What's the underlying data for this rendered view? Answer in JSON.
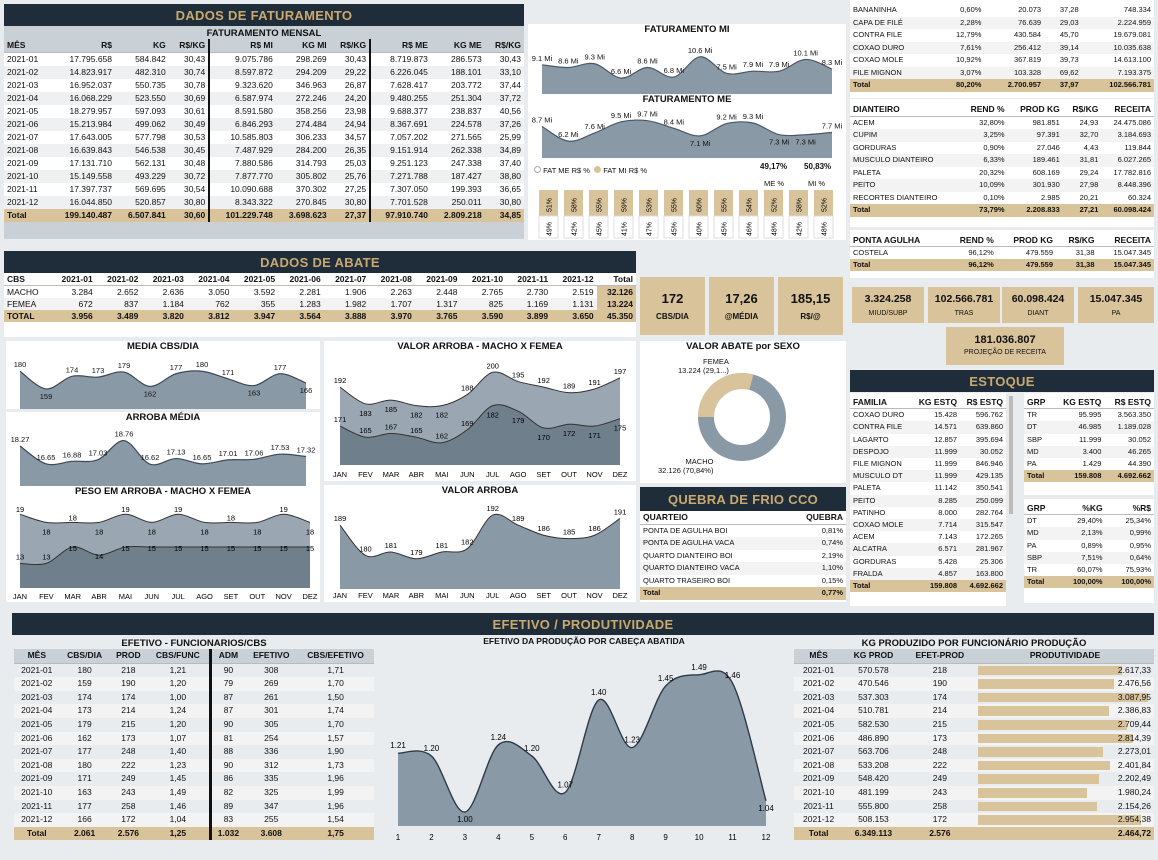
{
  "colors": {
    "navy": "#1f2d3a",
    "gold": "#c9a96e",
    "tan": "#d9c39a",
    "area": "#8a99a6",
    "areaDark": "#5f6f7d",
    "chartbg": "#c9d0d6"
  },
  "fat": {
    "band": "DADOS DE FATURAMENTO",
    "title": "FATURAMENTO MENSAL",
    "headers": [
      "MÊS",
      "R$",
      "KG",
      "R$/KG",
      "R$ MI",
      "KG MI",
      "R$/KG",
      "R$ ME",
      "KG ME",
      "R$/KG"
    ],
    "rows": [
      [
        "2021-01",
        "17.795.658",
        "584.842",
        "30,43",
        "9.075.786",
        "298.269",
        "30,43",
        "8.719.873",
        "286.573",
        "30,43"
      ],
      [
        "2021-02",
        "14.823.917",
        "482.310",
        "30,74",
        "8.597.872",
        "294.209",
        "29,22",
        "6.226.045",
        "188.101",
        "33,10"
      ],
      [
        "2021-03",
        "16.952.037",
        "550.735",
        "30,78",
        "9.323.620",
        "346.963",
        "26,87",
        "7.628.417",
        "203.772",
        "37,44"
      ],
      [
        "2021-04",
        "16.068.229",
        "523.550",
        "30,69",
        "6.587.974",
        "272.246",
        "24,20",
        "9.480.255",
        "251.304",
        "37,72"
      ],
      [
        "2021-05",
        "18.279.957",
        "597.093",
        "30,61",
        "8.591.580",
        "358.256",
        "23,98",
        "9.688.377",
        "238.837",
        "40,56"
      ],
      [
        "2021-06",
        "15.213.984",
        "499.062",
        "30,49",
        "6.846.293",
        "274.484",
        "24,94",
        "8.367.691",
        "224.578",
        "37,26"
      ],
      [
        "2021-07",
        "17.643.005",
        "577.798",
        "30,53",
        "10.585.803",
        "306.233",
        "34,57",
        "7.057.202",
        "271.565",
        "25,99"
      ],
      [
        "2021-08",
        "16.639.843",
        "546.538",
        "30,45",
        "7.487.929",
        "284.200",
        "26,35",
        "9.151.914",
        "262.338",
        "34,89"
      ],
      [
        "2021-09",
        "17.131.710",
        "562.131",
        "30,48",
        "7.880.586",
        "314.793",
        "25,03",
        "9.251.123",
        "247.338",
        "37,40"
      ],
      [
        "2021-10",
        "15.149.558",
        "493.229",
        "30,72",
        "7.877.770",
        "305.802",
        "25,76",
        "7.271.788",
        "187.427",
        "38,80"
      ],
      [
        "2021-11",
        "17.397.737",
        "569.695",
        "30,54",
        "10.090.688",
        "370.302",
        "27,25",
        "7.307.050",
        "199.393",
        "36,65"
      ],
      [
        "2021-12",
        "16.044.850",
        "520.857",
        "30,80",
        "8.343.322",
        "270.845",
        "30,80",
        "7.701.528",
        "250.011",
        "30,80"
      ]
    ],
    "total": [
      "Total",
      "199.140.487",
      "6.507.841",
      "30,60",
      "101.229.748",
      "3.698.623",
      "27,37",
      "97.910.740",
      "2.809.218",
      "34,85"
    ]
  },
  "fatmi": {
    "title": "FATURAMENTO MI",
    "labels": [
      "9.1 Mi",
      "8.6 Mi",
      "9.3 Mi",
      "6.6 Mi",
      "8.6 Mi",
      "6.8 Mi",
      "10.6 Mi",
      "7.5 Mi",
      "7.9 Mi",
      "7.9 Mi",
      "10.1 Mi",
      "8.3 Mi"
    ],
    "values": [
      9.1,
      8.6,
      9.3,
      6.6,
      8.6,
      6.8,
      10.6,
      7.5,
      7.9,
      7.9,
      10.1,
      8.3
    ]
  },
  "fatme": {
    "title": "FATURAMENTO ME",
    "labels": [
      "8.7 Mi",
      "6.2 Mi",
      "7.6 Mi",
      "9.5 Mi",
      "9.7 Mi",
      "8.4 Mi",
      "7.1 Mi",
      "9.2 Mi",
      "9.3 Mi",
      "7.3 Mi",
      "7.3 Mi",
      "7.7 Mi"
    ],
    "values": [
      8.7,
      6.2,
      7.6,
      9.5,
      9.7,
      8.4,
      7.1,
      9.2,
      9.3,
      7.3,
      7.3,
      7.7
    ]
  },
  "fatpct": {
    "leg1": "FAT ME R$ %",
    "leg2": "FAT MI R$ %",
    "tot1": "49,17%",
    "tot2": "50,83%",
    "col1": "ME %",
    "col2": "MI %",
    "top": [
      "51%",
      "58%",
      "55%",
      "59%",
      "53%",
      "55%",
      "60%",
      "55%",
      "54%",
      "52%",
      "58%",
      "52%"
    ],
    "bot": [
      "49%",
      "42%",
      "45%",
      "41%",
      "47%",
      "45%",
      "40%",
      "45%",
      "46%",
      "48%",
      "42%",
      "48%"
    ]
  },
  "abate": {
    "band": "DADOS DE ABATE",
    "headers": [
      "CBS",
      "2021-01",
      "2021-02",
      "2021-03",
      "2021-04",
      "2021-05",
      "2021-06",
      "2021-07",
      "2021-08",
      "2021-09",
      "2021-10",
      "2021-11",
      "2021-12",
      "Total"
    ],
    "rows": [
      [
        "MACHO",
        "3.284",
        "2.652",
        "2.636",
        "3.050",
        "3.592",
        "2.281",
        "1.906",
        "2.263",
        "2.448",
        "2.765",
        "2.730",
        "2.519",
        "32.126"
      ],
      [
        "FEMEA",
        "672",
        "837",
        "1.184",
        "762",
        "355",
        "1.283",
        "1.982",
        "1.707",
        "1.317",
        "825",
        "1.169",
        "1.131",
        "13.224"
      ]
    ],
    "total": [
      "TOTAL",
      "3.956",
      "3.489",
      "3.820",
      "3.812",
      "3.947",
      "3.564",
      "3.888",
      "3.970",
      "3.765",
      "3.590",
      "3.899",
      "3.650",
      "45.350"
    ]
  },
  "kpi": [
    {
      "v": "172",
      "l": "CBS/DIA"
    },
    {
      "v": "17,26",
      "l": "@MÉDIA"
    },
    {
      "v": "185,15",
      "l": "R$/@"
    }
  ],
  "media": {
    "title": "MEDIA CBS/DIA",
    "labels": [
      "180",
      "159",
      "174",
      "173",
      "179",
      "162",
      "177",
      "180",
      "171",
      "163",
      "177",
      "166"
    ],
    "values": [
      180,
      159,
      174,
      173,
      179,
      162,
      177,
      180,
      171,
      163,
      177,
      166
    ]
  },
  "arroba": {
    "title": "ARROBA MÉDIA",
    "labels": [
      "18.27",
      "16.65",
      "16.88",
      "17.03",
      "18.76",
      "16.62",
      "17.13",
      "16.65",
      "17.01",
      "17.06",
      "17.53",
      "17.32"
    ],
    "values": [
      18.27,
      16.65,
      16.88,
      17.03,
      18.76,
      16.62,
      17.13,
      16.65,
      17.01,
      17.06,
      17.53,
      17.32
    ]
  },
  "peso": {
    "title": "PESO EM ARROBA - MACHO X FEMEA",
    "top": [
      19,
      18,
      18,
      18,
      19,
      18,
      19,
      18,
      18,
      18,
      19,
      18
    ],
    "bot": [
      13,
      13,
      15,
      14,
      15,
      15,
      15,
      15,
      15,
      15,
      15,
      15
    ],
    "months": [
      "JAN",
      "FEV",
      "MAR",
      "ABR",
      "MAI",
      "JUN",
      "JUL",
      "AGO",
      "SET",
      "OUT",
      "NOV",
      "DEZ"
    ]
  },
  "valorarroba_mf": {
    "title": "VALOR ARROBA - MACHO X FEMEA",
    "top": [
      192,
      183,
      185,
      182,
      182,
      188,
      200,
      195,
      192,
      189,
      191,
      197
    ],
    "bot": [
      171,
      165,
      167,
      165,
      162,
      169,
      182,
      179,
      170,
      172,
      171,
      175
    ]
  },
  "valorarroba": {
    "title": "VALOR ARROBA",
    "values": [
      189,
      180,
      181,
      179,
      181,
      182,
      192,
      189,
      186,
      185,
      186,
      191
    ]
  },
  "sexo": {
    "title": "VALOR ABATE por SEXO",
    "femea": "FEMEA",
    "femeaVal": "13.224 (29,1...)",
    "macho": "MACHO",
    "machoVal": "32.126 (70,84%)",
    "pct": 29.16
  },
  "quebra": {
    "band": "QUEBRA DE FRIO CCO",
    "h1": "QUARTEIO",
    "h2": "QUEBRA",
    "rows": [
      [
        "PONTA DE AGULHA BOI",
        "0,81%"
      ],
      [
        "PONTA DE AGULHA VACA",
        "0,74%"
      ],
      [
        "QUARTO DIANTEIRO BOI",
        "2,19%"
      ],
      [
        "QUARTO DIANTEIRO VACA",
        "1,10%"
      ],
      [
        "QUARTO TRASEIRO BOI",
        "0,15%"
      ]
    ],
    "total": [
      "Total",
      "0,77%"
    ]
  },
  "cortes1": {
    "rows": [
      [
        "BANANINHA",
        "0,60%",
        "20.073",
        "37,28",
        "748.334"
      ],
      [
        "CAPA DE FILÉ",
        "2,28%",
        "76.639",
        "29,03",
        "2.224.959"
      ],
      [
        "CONTRA FILE",
        "12,79%",
        "430.584",
        "45,70",
        "19.679.081"
      ],
      [
        "COXAO DURO",
        "7,61%",
        "256.412",
        "39,14",
        "10.035.638"
      ],
      [
        "COXAO MOLE",
        "10,92%",
        "367.819",
        "39,73",
        "14.613.100"
      ],
      [
        "FILE MIGNON",
        "3,07%",
        "103.328",
        "69,62",
        "7.193.375"
      ]
    ],
    "total": [
      "Total",
      "80,20%",
      "2.700.957",
      "37,97",
      "102.566.781"
    ]
  },
  "cortes2": {
    "headers": [
      "DIANTEIRO",
      "REND %",
      "PROD KG",
      "R$/KG",
      "RECEITA"
    ],
    "rows": [
      [
        "ACEM",
        "32,80%",
        "981.851",
        "24,93",
        "24.475.086"
      ],
      [
        "CUPIM",
        "3,25%",
        "97.391",
        "32,70",
        "3.184.693"
      ],
      [
        "GORDURAS",
        "0,90%",
        "27.046",
        "4,43",
        "119.844"
      ],
      [
        "MUSCULO DIANTEIRO",
        "6,33%",
        "189.461",
        "31,81",
        "6.027.265"
      ],
      [
        "PALETA",
        "20,32%",
        "608.169",
        "29,24",
        "17.782.816"
      ],
      [
        "PEITO",
        "10,09%",
        "301.930",
        "27,98",
        "8.448.396"
      ],
      [
        "RECORTES DIANTEIRO",
        "0,10%",
        "2.985",
        "20,21",
        "60.324"
      ]
    ],
    "total": [
      "Total",
      "73,79%",
      "2.208.833",
      "27,21",
      "60.098.424"
    ]
  },
  "cortes3": {
    "headers": [
      "PONTA AGULHA",
      "REND %",
      "PROD KG",
      "R$/KG",
      "RECEITA"
    ],
    "rows": [
      [
        "COSTELA",
        "96,12%",
        "479.559",
        "31,38",
        "15.047.345"
      ]
    ],
    "total": [
      "Total",
      "96,12%",
      "479.559",
      "31,38",
      "15.047.345"
    ]
  },
  "cards2": [
    {
      "v": "3.324.258",
      "l": "MIUD/SUBP"
    },
    {
      "v": "102.566.781",
      "l": "TRAS"
    },
    {
      "v": "60.098.424",
      "l": "DIANT"
    },
    {
      "v": "15.047.345",
      "l": "PA"
    }
  ],
  "projecao": {
    "v": "181.036.807",
    "l": "PROJEÇÃO DE RECEITA"
  },
  "estoque": {
    "band": "ESTOQUE",
    "headers": [
      "FAMILIA",
      "KG ESTQ",
      "R$ ESTQ"
    ],
    "rows": [
      [
        "COXAO DURO",
        "15.428",
        "596.762"
      ],
      [
        "CONTRA FILE",
        "14.571",
        "639.860"
      ],
      [
        "LAGARTO",
        "12.857",
        "395.694"
      ],
      [
        "DESPOJO",
        "11.999",
        "30.052"
      ],
      [
        "FILE MIGNON",
        "11.999",
        "846.946"
      ],
      [
        "MUSCULO DT",
        "11.999",
        "429.135"
      ],
      [
        "PALETA",
        "11.142",
        "350.541"
      ],
      [
        "PEITO",
        "8.285",
        "250.099"
      ],
      [
        "PATINHO",
        "8.000",
        "282.764"
      ],
      [
        "COXAO MOLE",
        "7.714",
        "315.547"
      ],
      [
        "ACEM",
        "7.143",
        "172.265"
      ],
      [
        "ALCATRA",
        "6.571",
        "281.967"
      ],
      [
        "GORDURAS",
        "5.428",
        "25.306"
      ],
      [
        "FRALDA",
        "4.857",
        "163.800"
      ]
    ],
    "total": [
      "Total",
      "159.808",
      "4.692.662"
    ],
    "grp": {
      "headers": [
        "GRP",
        "KG ESTQ",
        "R$ ESTQ"
      ],
      "rows": [
        [
          "TR",
          "95.995",
          "3.563.350"
        ],
        [
          "DT",
          "46.985",
          "1.189.028"
        ],
        [
          "SBP",
          "11.999",
          "30.052"
        ],
        [
          "MD",
          "3.400",
          "46.265"
        ],
        [
          "PA",
          "1.429",
          "44.390"
        ]
      ],
      "total": [
        "Total",
        "159.808",
        "4.692.662"
      ]
    },
    "grp2": {
      "headers": [
        "GRP",
        "%KG",
        "%R$"
      ],
      "rows": [
        [
          "DT",
          "29,40%",
          "25,34%"
        ],
        [
          "MD",
          "2,13%",
          "0,99%"
        ],
        [
          "PA",
          "0,89%",
          "0,95%"
        ],
        [
          "SBP",
          "7,51%",
          "0,64%"
        ],
        [
          "TR",
          "60,07%",
          "75,93%"
        ]
      ],
      "total": [
        "Total",
        "100,00%",
        "100,00%"
      ]
    }
  },
  "efetivo": {
    "band": "EFETIVO / PRODUTIVIDADE",
    "title": "EFETIVO - FUNCIONARIOS/CBS",
    "headers": [
      "MÊS",
      "CBS/DIA",
      "PROD",
      "CBS/FUNC",
      "ADM",
      "EFETIVO",
      "CBS/EFETIVO"
    ],
    "rows": [
      [
        "2021-01",
        "180",
        "218",
        "1,21",
        "90",
        "308",
        "1,71"
      ],
      [
        "2021-02",
        "159",
        "190",
        "1,20",
        "79",
        "269",
        "1,70"
      ],
      [
        "2021-03",
        "174",
        "174",
        "1,00",
        "87",
        "261",
        "1,50"
      ],
      [
        "2021-04",
        "173",
        "214",
        "1,24",
        "87",
        "301",
        "1,74"
      ],
      [
        "2021-05",
        "179",
        "215",
        "1,20",
        "90",
        "305",
        "1,70"
      ],
      [
        "2021-06",
        "162",
        "173",
        "1,07",
        "81",
        "254",
        "1,57"
      ],
      [
        "2021-07",
        "177",
        "248",
        "1,40",
        "88",
        "336",
        "1,90"
      ],
      [
        "2021-08",
        "180",
        "222",
        "1,23",
        "90",
        "312",
        "1,73"
      ],
      [
        "2021-09",
        "171",
        "249",
        "1,45",
        "86",
        "335",
        "1,96"
      ],
      [
        "2021-10",
        "163",
        "243",
        "1,49",
        "82",
        "325",
        "1,99"
      ],
      [
        "2021-11",
        "177",
        "258",
        "1,46",
        "89",
        "347",
        "1,96"
      ],
      [
        "2021-12",
        "166",
        "172",
        "1,04",
        "83",
        "255",
        "1,54"
      ]
    ],
    "total": [
      "Total",
      "2.061",
      "2.576",
      "1,25",
      "1.032",
      "3.608",
      "1,75"
    ]
  },
  "efprod": {
    "title": "EFETIVO DA PRODUÇÃO POR CABEÇA ABATIDA",
    "labels": [
      "1.21",
      "1.20",
      "1.00",
      "1.24",
      "1.20",
      "1.07",
      "1.40",
      "1.23",
      "1.45",
      "1.49",
      "1.46",
      "1.04"
    ],
    "values": [
      1.21,
      1.2,
      1.0,
      1.24,
      1.2,
      1.07,
      1.4,
      1.23,
      1.45,
      1.49,
      1.46,
      1.04
    ],
    "x": [
      "1",
      "2",
      "3",
      "4",
      "5",
      "6",
      "7",
      "8",
      "9",
      "10",
      "11",
      "12"
    ]
  },
  "kgprod": {
    "title": "KG PRODUZIDO POR FUNCIONÁRIO PRODUÇÃO",
    "headers": [
      "MÊS",
      "KG PROD",
      "EFET-PROD",
      "PRODUTIVIDADE"
    ],
    "rows": [
      [
        "2021-01",
        "570.578",
        "218",
        "2.617,33"
      ],
      [
        "2021-02",
        "470.546",
        "190",
        "2.476,56"
      ],
      [
        "2021-03",
        "537.303",
        "174",
        "3.087,95"
      ],
      [
        "2021-04",
        "510.781",
        "214",
        "2.386,83"
      ],
      [
        "2021-05",
        "582.530",
        "215",
        "2.709,44"
      ],
      [
        "2021-06",
        "486.890",
        "173",
        "2.814,39"
      ],
      [
        "2021-07",
        "563.706",
        "248",
        "2.273,01"
      ],
      [
        "2021-08",
        "533.208",
        "222",
        "2.401,84"
      ],
      [
        "2021-09",
        "548.420",
        "249",
        "2.202,49"
      ],
      [
        "2021-10",
        "481.199",
        "243",
        "1.980,24"
      ],
      [
        "2021-11",
        "555.800",
        "258",
        "2.154,26"
      ],
      [
        "2021-12",
        "508.153",
        "172",
        "2.954,38"
      ]
    ],
    "prodvals": [
      2617.33,
      2476.56,
      3087.95,
      2386.83,
      2709.44,
      2814.39,
      2273.01,
      2401.84,
      2202.49,
      1980.24,
      2154.26,
      2954.38
    ],
    "total": [
      "Total",
      "6.349.113",
      "2.576",
      "2.464,72"
    ]
  }
}
